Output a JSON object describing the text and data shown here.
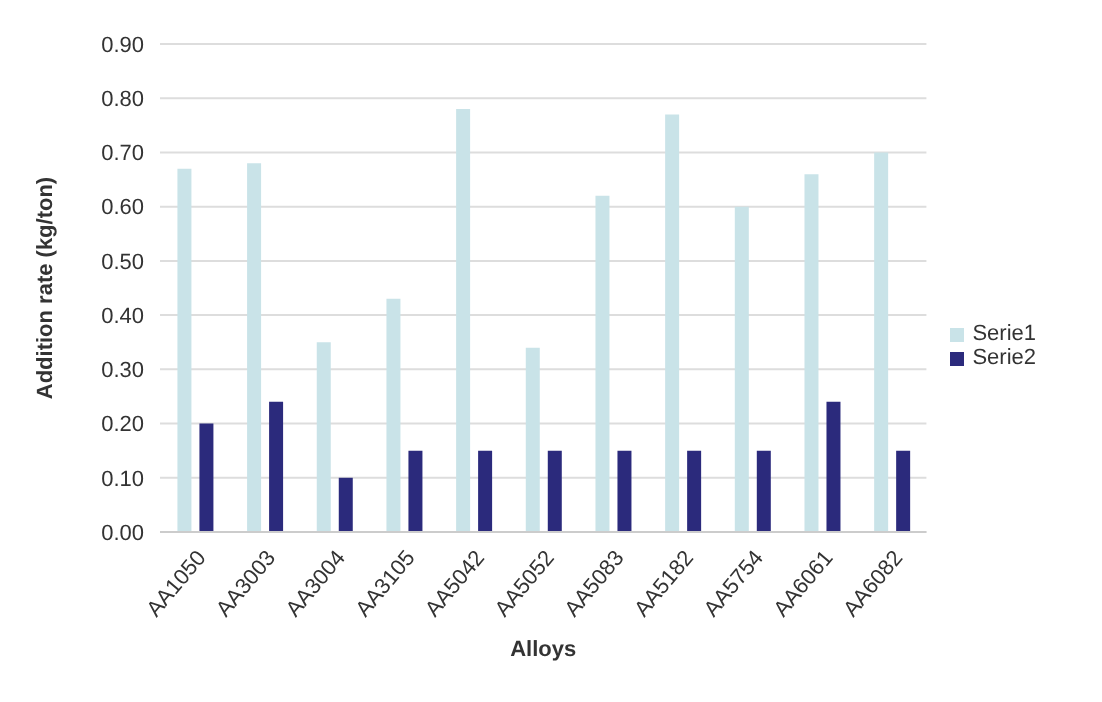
{
  "chart_data": {
    "type": "bar",
    "xlabel": "Alloys",
    "ylabel": "Addition rate (kg/ton)",
    "categories": [
      "AA1050",
      "AA3003",
      "AA3004",
      "AA3105",
      "AA5042",
      "AA5052",
      "AA5083",
      "AA5182",
      "AA5754",
      "AA6061",
      "AA6082"
    ],
    "series": [
      {
        "name": "Serie1",
        "color": "#c9e3e8",
        "values": [
          0.67,
          0.68,
          0.35,
          0.43,
          0.78,
          0.34,
          0.62,
          0.77,
          0.6,
          0.66,
          0.7
        ]
      },
      {
        "name": "Serie2",
        "color": "#2b2a7c",
        "values": [
          0.2,
          0.24,
          0.1,
          0.15,
          0.15,
          0.15,
          0.15,
          0.15,
          0.15,
          0.24,
          0.15
        ]
      }
    ],
    "ylim": [
      0,
      0.9
    ],
    "yticks": [
      {
        "value": 0,
        "label": "0.00"
      },
      {
        "value": 0.1,
        "label": "0.10"
      },
      {
        "value": 0.2,
        "label": "0.20"
      },
      {
        "value": 0.3,
        "label": "0.30"
      },
      {
        "value": 0.4,
        "label": "0.40"
      },
      {
        "value": 0.5,
        "label": "0.50"
      },
      {
        "value": 0.6,
        "label": "0.60"
      },
      {
        "value": 0.7,
        "label": "0.70"
      },
      {
        "value": 0.8,
        "label": "0.80"
      },
      {
        "value": 0.9,
        "label": "0.90"
      }
    ],
    "grid": "y",
    "legend": "right"
  }
}
